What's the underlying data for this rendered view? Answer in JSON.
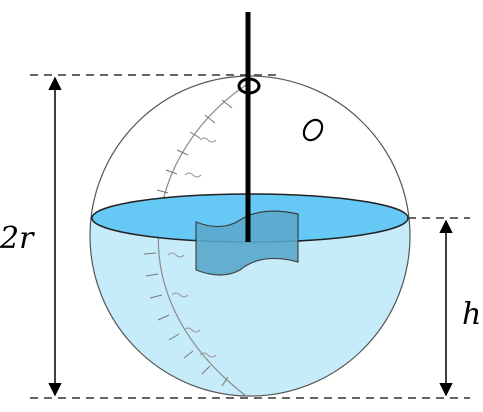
{
  "labels": {
    "diameter": "2r",
    "height": "h"
  },
  "colors": {
    "water_body": "#c6ecfa",
    "water_surface": "#66c8f5",
    "stirrer_paddle": "#5aa9cc",
    "sphere_outline": "#555555",
    "stroke": "#000000",
    "dashed_line": "#333333",
    "background": "#ffffff"
  }
}
